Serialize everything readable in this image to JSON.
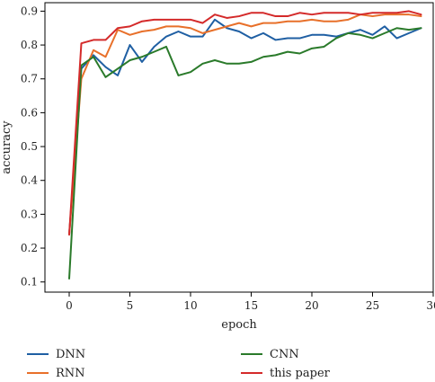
{
  "chart_data": {
    "type": "line",
    "xlabel": "epoch",
    "ylabel": "accuracy",
    "xlim": [
      -2,
      30
    ],
    "ylim": [
      0.07,
      0.925
    ],
    "x_ticks": [
      0,
      5,
      10,
      15,
      20,
      25,
      30
    ],
    "y_ticks": [
      0.1,
      0.2,
      0.3,
      0.4,
      0.5,
      0.6,
      0.7,
      0.8,
      0.9
    ],
    "x_tick_labels": [
      "0",
      "5",
      "10",
      "15",
      "20",
      "25",
      "30"
    ],
    "y_tick_labels": [
      "0.1",
      "0.2",
      "0.3",
      "0.4",
      "0.5",
      "0.6",
      "0.7",
      "0.8",
      "0.9"
    ],
    "grid": false,
    "legend_position": "bottom",
    "x": [
      0,
      1,
      2,
      3,
      4,
      5,
      6,
      7,
      8,
      9,
      10,
      11,
      12,
      13,
      14,
      15,
      16,
      17,
      18,
      19,
      20,
      21,
      22,
      23,
      24,
      25,
      26,
      27,
      28,
      29
    ],
    "series": [
      {
        "name": "DNN",
        "color": "#1f5fa3",
        "values": [
          0.24,
          0.73,
          0.77,
          0.735,
          0.71,
          0.8,
          0.75,
          0.795,
          0.825,
          0.84,
          0.825,
          0.825,
          0.875,
          0.85,
          0.84,
          0.82,
          0.835,
          0.815,
          0.82,
          0.82,
          0.83,
          0.83,
          0.825,
          0.835,
          0.845,
          0.83,
          0.855,
          0.82,
          0.835,
          0.85
        ]
      },
      {
        "name": "RNN",
        "color": "#e8702a",
        "values": [
          0.24,
          0.7,
          0.785,
          0.765,
          0.845,
          0.83,
          0.84,
          0.845,
          0.855,
          0.855,
          0.85,
          0.835,
          0.845,
          0.855,
          0.865,
          0.855,
          0.865,
          0.865,
          0.87,
          0.87,
          0.875,
          0.87,
          0.87,
          0.875,
          0.89,
          0.885,
          0.89,
          0.89,
          0.89,
          0.885
        ]
      },
      {
        "name": "CNN",
        "color": "#2a7a2a",
        "values": [
          0.11,
          0.74,
          0.765,
          0.705,
          0.73,
          0.755,
          0.765,
          0.78,
          0.795,
          0.71,
          0.72,
          0.745,
          0.755,
          0.745,
          0.745,
          0.75,
          0.765,
          0.77,
          0.78,
          0.775,
          0.79,
          0.795,
          0.82,
          0.835,
          0.83,
          0.82,
          0.835,
          0.85,
          0.845,
          0.85
        ]
      },
      {
        "name": "this paper",
        "color": "#d42a2a",
        "values": [
          0.24,
          0.805,
          0.815,
          0.815,
          0.85,
          0.855,
          0.87,
          0.875,
          0.875,
          0.875,
          0.875,
          0.865,
          0.89,
          0.88,
          0.885,
          0.895,
          0.895,
          0.885,
          0.885,
          0.895,
          0.89,
          0.895,
          0.895,
          0.895,
          0.89,
          0.895,
          0.895,
          0.895,
          0.9,
          0.89
        ]
      }
    ]
  }
}
